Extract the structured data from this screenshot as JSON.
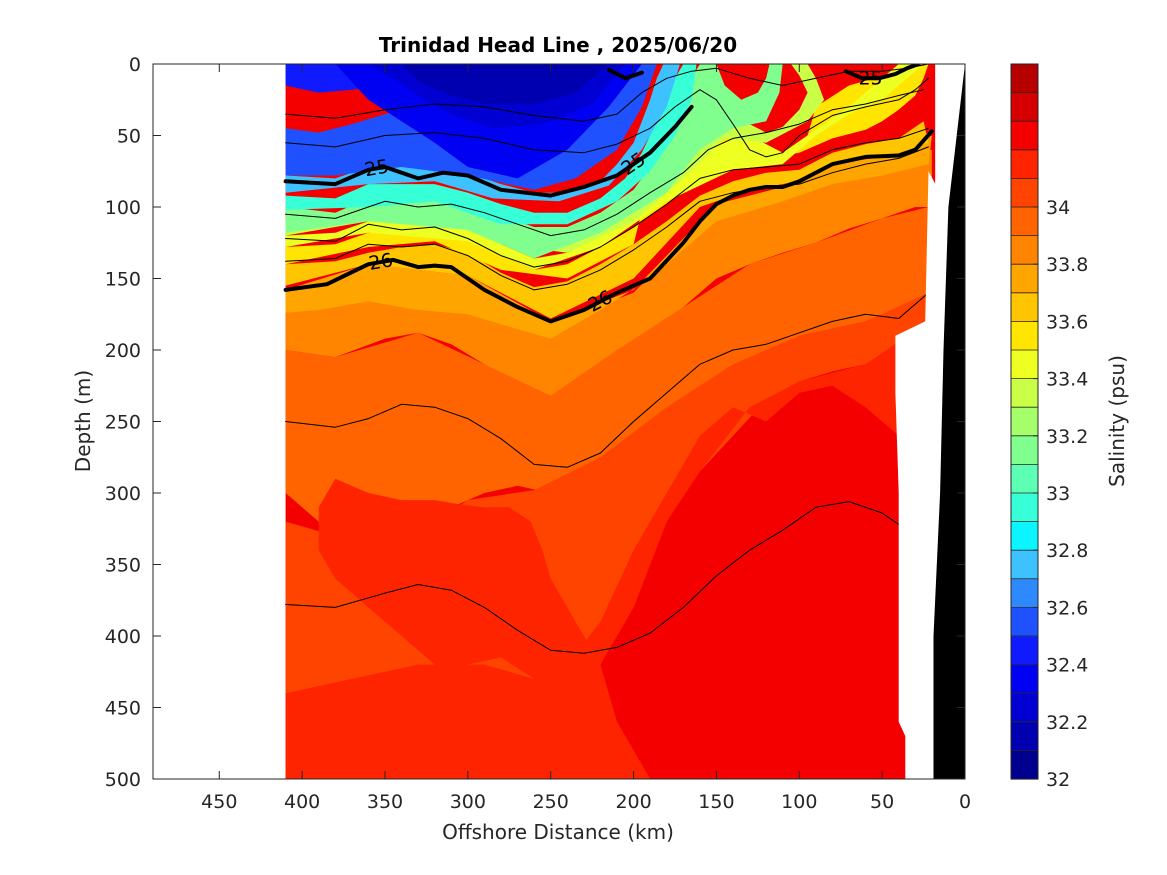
{
  "chart_data": {
    "type": "heatmap",
    "subtype": "filled-contour ocean section",
    "title": "Trinidad Head Line , 2025/06/20",
    "xlabel": "Offshore Distance (km)",
    "ylabel": "Depth (m)",
    "xlim": [
      490,
      0
    ],
    "x_reversed": true,
    "ylim": [
      0,
      500
    ],
    "y_reversed": true,
    "x_ticks": [
      450,
      400,
      350,
      300,
      250,
      200,
      150,
      100,
      50,
      0
    ],
    "y_ticks": [
      0,
      50,
      100,
      150,
      200,
      250,
      300,
      350,
      400,
      450,
      500
    ],
    "data_extent_x": [
      410,
      18
    ],
    "colorbar": {
      "label": "Salinity (psu)",
      "range": [
        32,
        34.5
      ],
      "step": 0.1,
      "tick_values": [
        32,
        32.2,
        32.4,
        32.6,
        32.8,
        33,
        33.2,
        33.4,
        33.6,
        33.8,
        34
      ],
      "tick_labels": [
        "32",
        "32.2",
        "32.4",
        "32.6",
        "32.8",
        "33",
        "33.2",
        "33.4",
        "33.6",
        "33.8",
        "34"
      ],
      "colors": [
        "#00008f",
        "#0000b0",
        "#0000d2",
        "#0000f3",
        "#0f1aff",
        "#1f51ff",
        "#2e89ff",
        "#3ec1ff",
        "#0cf4ff",
        "#37ffd7",
        "#5cffb3",
        "#80ff8f",
        "#a5ff6b",
        "#c9ff46",
        "#eeff22",
        "#ffe500",
        "#ffc500",
        "#ffa500",
        "#ff8500",
        "#ff6400",
        "#ff4400",
        "#ff2400",
        "#f50000",
        "#d60000",
        "#b60000"
      ]
    },
    "bands": [
      {
        "level": 32.3,
        "x": [
          195,
          215,
          240,
          270,
          300,
          320,
          340,
          360,
          380,
          250
        ],
        "y": [
          0,
          30,
          60,
          80,
          72,
          55,
          40,
          25,
          0,
          0
        ]
      },
      {
        "level": 32.2,
        "x": [
          205,
          225,
          255,
          285,
          310,
          330,
          345,
          360,
          250
        ],
        "y": [
          0,
          28,
          42,
          45,
          35,
          22,
          10,
          0,
          0
        ]
      },
      {
        "level": 32.1,
        "x": [
          215,
          235,
          260,
          290,
          310,
          330,
          340,
          270
        ],
        "y": [
          0,
          20,
          28,
          28,
          22,
          12,
          0,
          0
        ]
      }
    ],
    "isopycnals": [
      {
        "label": "25",
        "bold": true,
        "x": [
          410,
          380,
          360,
          350,
          330,
          315,
          300,
          280,
          250,
          230,
          210,
          190,
          175,
          165
        ],
        "y": [
          82,
          84,
          74,
          72,
          80,
          76,
          78,
          88,
          92,
          86,
          78,
          62,
          44,
          30
        ]
      },
      {
        "label": "26",
        "bold": true,
        "x": [
          410,
          385,
          360,
          345,
          330,
          320,
          310,
          290,
          270,
          250,
          230,
          210,
          190,
          170,
          160,
          150,
          140,
          130,
          120,
          110,
          100,
          80,
          60,
          40,
          30,
          20
        ],
        "y": [
          158,
          154,
          140,
          137,
          142,
          141,
          142,
          158,
          170,
          180,
          172,
          160,
          150,
          125,
          110,
          98,
          92,
          88,
          86,
          86,
          82,
          70,
          65,
          64,
          60,
          47
        ]
      },
      {
        "label": "25",
        "bold": true,
        "x": [
          72,
          62,
          52,
          42,
          35,
          28
        ],
        "y": [
          5,
          10,
          10,
          7,
          3,
          0
        ]
      },
      {
        "label": "",
        "bold": true,
        "x": [
          215,
          205,
          195
        ],
        "y": [
          4,
          10,
          6
        ]
      },
      {
        "label": "",
        "bold": false,
        "x": [
          410,
          380,
          350,
          320,
          290,
          260,
          230,
          210,
          195,
          180,
          165,
          150,
          130,
          110,
          90,
          70,
          50,
          35,
          22
        ],
        "y": [
          35,
          38,
          32,
          28,
          30,
          36,
          40,
          35,
          20,
          10,
          5,
          3,
          10,
          15,
          10,
          5,
          5,
          3,
          0
        ]
      },
      {
        "label": "",
        "bold": false,
        "x": [
          410,
          380,
          350,
          320,
          290,
          260,
          230,
          210,
          190,
          175,
          160,
          150,
          140,
          130,
          120,
          110,
          100,
          80,
          60,
          40,
          30,
          22
        ],
        "y": [
          55,
          58,
          50,
          48,
          52,
          60,
          62,
          56,
          45,
          30,
          18,
          25,
          42,
          60,
          65,
          62,
          50,
          36,
          30,
          25,
          18,
          10
        ]
      },
      {
        "label": "",
        "bold": false,
        "x": [
          410,
          380,
          350,
          330,
          310,
          290,
          270,
          250,
          230,
          210,
          190,
          170,
          155,
          140,
          120,
          100,
          80,
          60,
          40,
          25
        ],
        "y": [
          105,
          108,
          96,
          100,
          98,
          104,
          112,
          120,
          116,
          105,
          90,
          76,
          60,
          52,
          48,
          42,
          32,
          28,
          22,
          18
        ]
      },
      {
        "label": "",
        "bold": false,
        "x": [
          410,
          380,
          360,
          340,
          320,
          300,
          280,
          260,
          240,
          220,
          200,
          180,
          160,
          140,
          120,
          100,
          80,
          60,
          40,
          22
        ],
        "y": [
          122,
          124,
          112,
          116,
          114,
          122,
          134,
          142,
          138,
          128,
          114,
          98,
          80,
          74,
          72,
          70,
          60,
          55,
          52,
          45
        ]
      },
      {
        "label": "",
        "bold": false,
        "x": [
          410,
          380,
          360,
          340,
          320,
          300,
          280,
          260,
          240,
          220,
          200,
          180,
          160,
          140,
          120,
          100,
          80,
          60,
          40,
          22
        ],
        "y": [
          138,
          136,
          126,
          128,
          126,
          134,
          148,
          158,
          154,
          144,
          130,
          114,
          96,
          90,
          86,
          84,
          76,
          70,
          66,
          58
        ]
      },
      {
        "label": "",
        "bold": false,
        "x": [
          410,
          380,
          360,
          340,
          320,
          300,
          280,
          260,
          240,
          220,
          200,
          180,
          160,
          140,
          120,
          100,
          80,
          60,
          40,
          22
        ],
        "y": [
          250,
          254,
          248,
          238,
          240,
          248,
          262,
          280,
          282,
          272,
          250,
          230,
          210,
          200,
          196,
          188,
          180,
          175,
          178,
          160
        ]
      },
      {
        "label": "",
        "bold": false,
        "x": [
          410,
          380,
          350,
          330,
          310,
          290,
          270,
          250,
          230,
          210,
          190,
          170,
          150,
          130,
          110,
          90,
          70,
          50,
          35
        ],
        "y": [
          378,
          380,
          370,
          364,
          368,
          380,
          396,
          410,
          412,
          408,
          398,
          380,
          358,
          340,
          326,
          310,
          306,
          314,
          326
        ]
      }
    ]
  }
}
